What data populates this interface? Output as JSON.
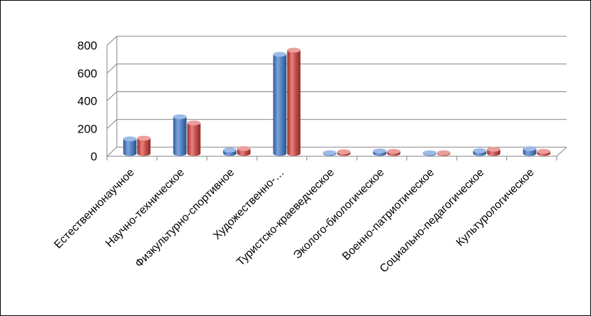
{
  "chart_data": {
    "type": "bar",
    "title": "",
    "xlabel": "",
    "ylabel": "",
    "ylim": [
      0,
      800
    ],
    "yticks": [
      0,
      200,
      400,
      600,
      800
    ],
    "grid": true,
    "legend": "none",
    "categories": [
      "Естественнонаучное",
      "Научно-техническое",
      "Физкультурно-спортивное",
      "Художественно-…",
      "Туристско-краеведческое",
      "Эколого-биологическое",
      "Военно-патриотическое",
      "Социально-педагогическое",
      "Культурологическое"
    ],
    "series": [
      {
        "values": [
          105,
          265,
          25,
          715,
          5,
          18,
          5,
          20,
          35
        ],
        "color": "#4f81bd"
      },
      {
        "values": [
          110,
          220,
          35,
          745,
          12,
          15,
          5,
          30,
          15
        ],
        "color": "#c0504d"
      }
    ]
  }
}
